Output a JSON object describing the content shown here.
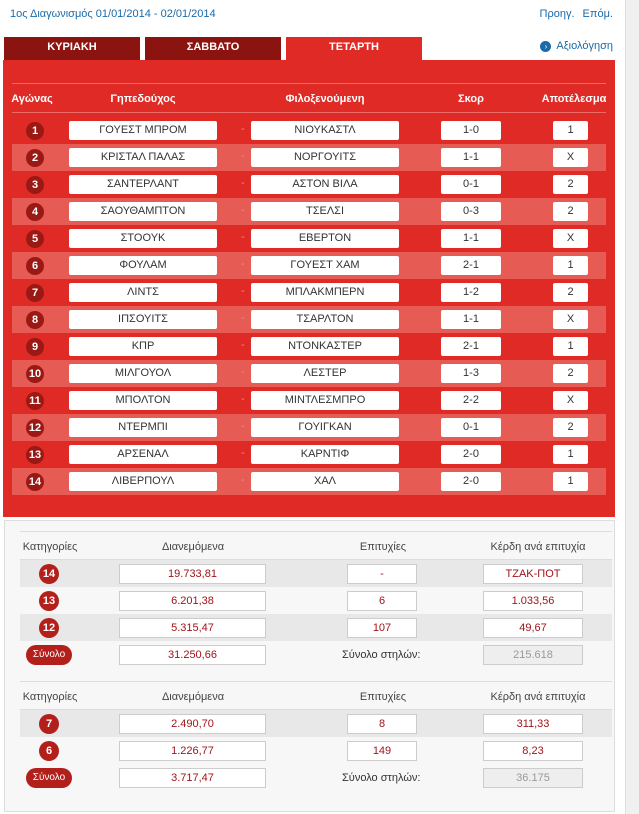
{
  "header": {
    "title": "1ος Διαγωνισμός 01/01/2014 - 02/01/2014",
    "prev": "Προηγ.",
    "next": "Επόμ."
  },
  "tabs": [
    {
      "label": "ΚΥΡΙΑΚΗ",
      "active": false
    },
    {
      "label": "ΣΑΒΒΑΤΟ",
      "active": false
    },
    {
      "label": "ΤΕΤΑΡΤΗ",
      "active": true
    }
  ],
  "evaluation_link": "Αξιολόγηση",
  "matches_table": {
    "headers": [
      "Αγώνας",
      "Γηπεδούχος",
      "Φιλοξενούμενη",
      "Σκορ",
      "Αποτέλεσμα"
    ],
    "separator": "-",
    "rows": [
      {
        "n": "1",
        "home": "ΓΟΥΕΣΤ ΜΠΡΟΜ",
        "away": "ΝΙΟΥΚΑΣΤΛ",
        "score": "1-0",
        "result": "1"
      },
      {
        "n": "2",
        "home": "ΚΡΙΣΤΑΛ ΠΑΛΑΣ",
        "away": "ΝΟΡΓΟΥΙΤΣ",
        "score": "1-1",
        "result": "X"
      },
      {
        "n": "3",
        "home": "ΣΑΝΤΕΡΛΑΝΤ",
        "away": "ΑΣΤΟΝ ΒΙΛΑ",
        "score": "0-1",
        "result": "2"
      },
      {
        "n": "4",
        "home": "ΣΑΟΥΘΑΜΠΤΟΝ",
        "away": "ΤΣΕΛΣΙ",
        "score": "0-3",
        "result": "2"
      },
      {
        "n": "5",
        "home": "ΣΤΟΟΥΚ",
        "away": "ΕΒΕΡΤΟΝ",
        "score": "1-1",
        "result": "X"
      },
      {
        "n": "6",
        "home": "ΦΟΥΛΑΜ",
        "away": "ΓΟΥΕΣΤ ΧΑΜ",
        "score": "2-1",
        "result": "1"
      },
      {
        "n": "7",
        "home": "ΛΙΝΤΣ",
        "away": "ΜΠΛΑΚΜΠΕΡΝ",
        "score": "1-2",
        "result": "2"
      },
      {
        "n": "8",
        "home": "ΙΠΣΟΥΙΤΣ",
        "away": "ΤΣΑΡΛΤΟΝ",
        "score": "1-1",
        "result": "X"
      },
      {
        "n": "9",
        "home": "ΚΠΡ",
        "away": "ΝΤΟΝΚΑΣΤΕΡ",
        "score": "2-1",
        "result": "1"
      },
      {
        "n": "10",
        "home": "ΜΙΛΓΟΥΟΛ",
        "away": "ΛΕΣΤΕΡ",
        "score": "1-3",
        "result": "2"
      },
      {
        "n": "11",
        "home": "ΜΠΟΛΤΟΝ",
        "away": "ΜΙΝΤΛΕΣΜΠΡΟ",
        "score": "2-2",
        "result": "X"
      },
      {
        "n": "12",
        "home": "ΝΤΕΡΜΠΙ",
        "away": "ΓΟΥΙΓΚΑΝ",
        "score": "0-1",
        "result": "2"
      },
      {
        "n": "13",
        "home": "ΑΡΣΕΝΑΛ",
        "away": "ΚΑΡΝΤΙΦ",
        "score": "2-0",
        "result": "1"
      },
      {
        "n": "14",
        "home": "ΛΙΒΕΡΠΟΥΛ",
        "away": "ΧΑΛ",
        "score": "2-0",
        "result": "1"
      }
    ]
  },
  "payouts": [
    {
      "headers": [
        "Κατηγορίες",
        "Διανεμόμενα",
        "Επιτυχίες",
        "Κέρδη ανά επιτυχία"
      ],
      "rows": [
        {
          "cat": "14",
          "dist": "19.733,81",
          "wins": "-",
          "gain": "ΤΖΑΚ-ΠΟΤ"
        },
        {
          "cat": "13",
          "dist": "6.201,38",
          "wins": "6",
          "gain": "1.033,56"
        },
        {
          "cat": "12",
          "dist": "5.315,47",
          "wins": "107",
          "gain": "49,67"
        }
      ],
      "total": {
        "label": "Σύνολο",
        "dist": "31.250,66",
        "columns_label": "Σύνολο στηλών:",
        "columns": "215.618"
      }
    },
    {
      "headers": [
        "Κατηγορίες",
        "Διανεμόμενα",
        "Επιτυχίες",
        "Κέρδη ανά επιτυχία"
      ],
      "rows": [
        {
          "cat": "7",
          "dist": "2.490,70",
          "wins": "8",
          "gain": "311,33"
        },
        {
          "cat": "6",
          "dist": "1.226,77",
          "wins": "149",
          "gain": "8,23"
        }
      ],
      "total": {
        "label": "Σύνολο",
        "dist": "3.717,47",
        "columns_label": "Σύνολο στηλών:",
        "columns": "36.175"
      }
    }
  ],
  "colors": {
    "red": "#e02a25",
    "dark_red": "#8b1410",
    "link": "#1a6aa8"
  }
}
